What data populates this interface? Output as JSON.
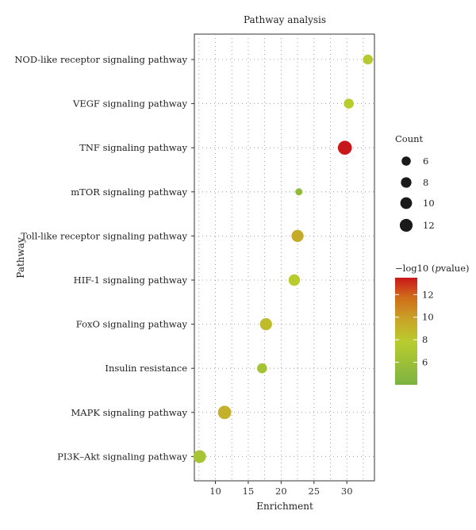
{
  "chart_data": {
    "type": "scatter",
    "title": "Pathway analysis",
    "xlabel": "Enrichment",
    "ylabel": "Pathway",
    "xlim": [
      6.8,
      34.2
    ],
    "xticks": [
      10,
      15,
      20,
      25,
      30
    ],
    "grid": true,
    "categories": [
      "NOD-like receptor signaling pathway",
      "VEGF signaling pathway",
      "TNF signaling pathway",
      "mTOR signaling pathway",
      "Toll-like receptor signaling pathway",
      "HIF-1 signaling pathway",
      "FoxO signaling pathway",
      "Insulin resistance",
      "MAPK signaling pathway",
      "PI3K–Akt signaling pathway"
    ],
    "points": [
      {
        "pathway": "NOD-like receptor signaling pathway",
        "enrichment": 33.2,
        "count": 6,
        "neglog10p": 7.5
      },
      {
        "pathway": "VEGF signaling pathway",
        "enrichment": 30.3,
        "count": 6,
        "neglog10p": 7.8
      },
      {
        "pathway": "TNF signaling pathway",
        "enrichment": 29.7,
        "count": 12,
        "neglog10p": 13.5
      },
      {
        "pathway": "mTOR signaling pathway",
        "enrichment": 22.7,
        "count": 3,
        "neglog10p": 5.2
      },
      {
        "pathway": "Toll-like receptor signaling pathway",
        "enrichment": 22.5,
        "count": 9,
        "neglog10p": 9.5
      },
      {
        "pathway": "HIF-1 signaling pathway",
        "enrichment": 22.0,
        "count": 8,
        "neglog10p": 7.8
      },
      {
        "pathway": "FoxO signaling pathway",
        "enrichment": 17.7,
        "count": 9,
        "neglog10p": 8.6
      },
      {
        "pathway": "Insulin resistance",
        "enrichment": 17.1,
        "count": 6,
        "neglog10p": 6.4
      },
      {
        "pathway": "MAPK signaling pathway",
        "enrichment": 11.4,
        "count": 11,
        "neglog10p": 9.2
      },
      {
        "pathway": "PI3K–Akt signaling pathway",
        "enrichment": 7.6,
        "count": 10,
        "neglog10p": 6.6
      }
    ],
    "size_legend": {
      "title": "Count",
      "values": [
        6,
        8,
        10,
        12
      ],
      "labels": [
        "6",
        "8",
        "10",
        "12"
      ]
    },
    "color_legend": {
      "title_prefix": "−log10 (",
      "title_italic": "p",
      "title_suffix": "value)",
      "min": 4.0,
      "max": 13.5,
      "ticks": [
        6,
        8,
        10,
        12
      ],
      "tick_labels": [
        "6",
        "8",
        "10",
        "12"
      ],
      "colors": [
        "#7cb342",
        "#b9cc2e",
        "#c8a628",
        "#d06b1a",
        "#c8171a"
      ]
    },
    "point_color_scale": [
      "#7cb342",
      "#b9cc2e",
      "#c8a628",
      "#d06b1a",
      "#c8171a"
    ],
    "size_legend_color": "#1a1a1a"
  }
}
